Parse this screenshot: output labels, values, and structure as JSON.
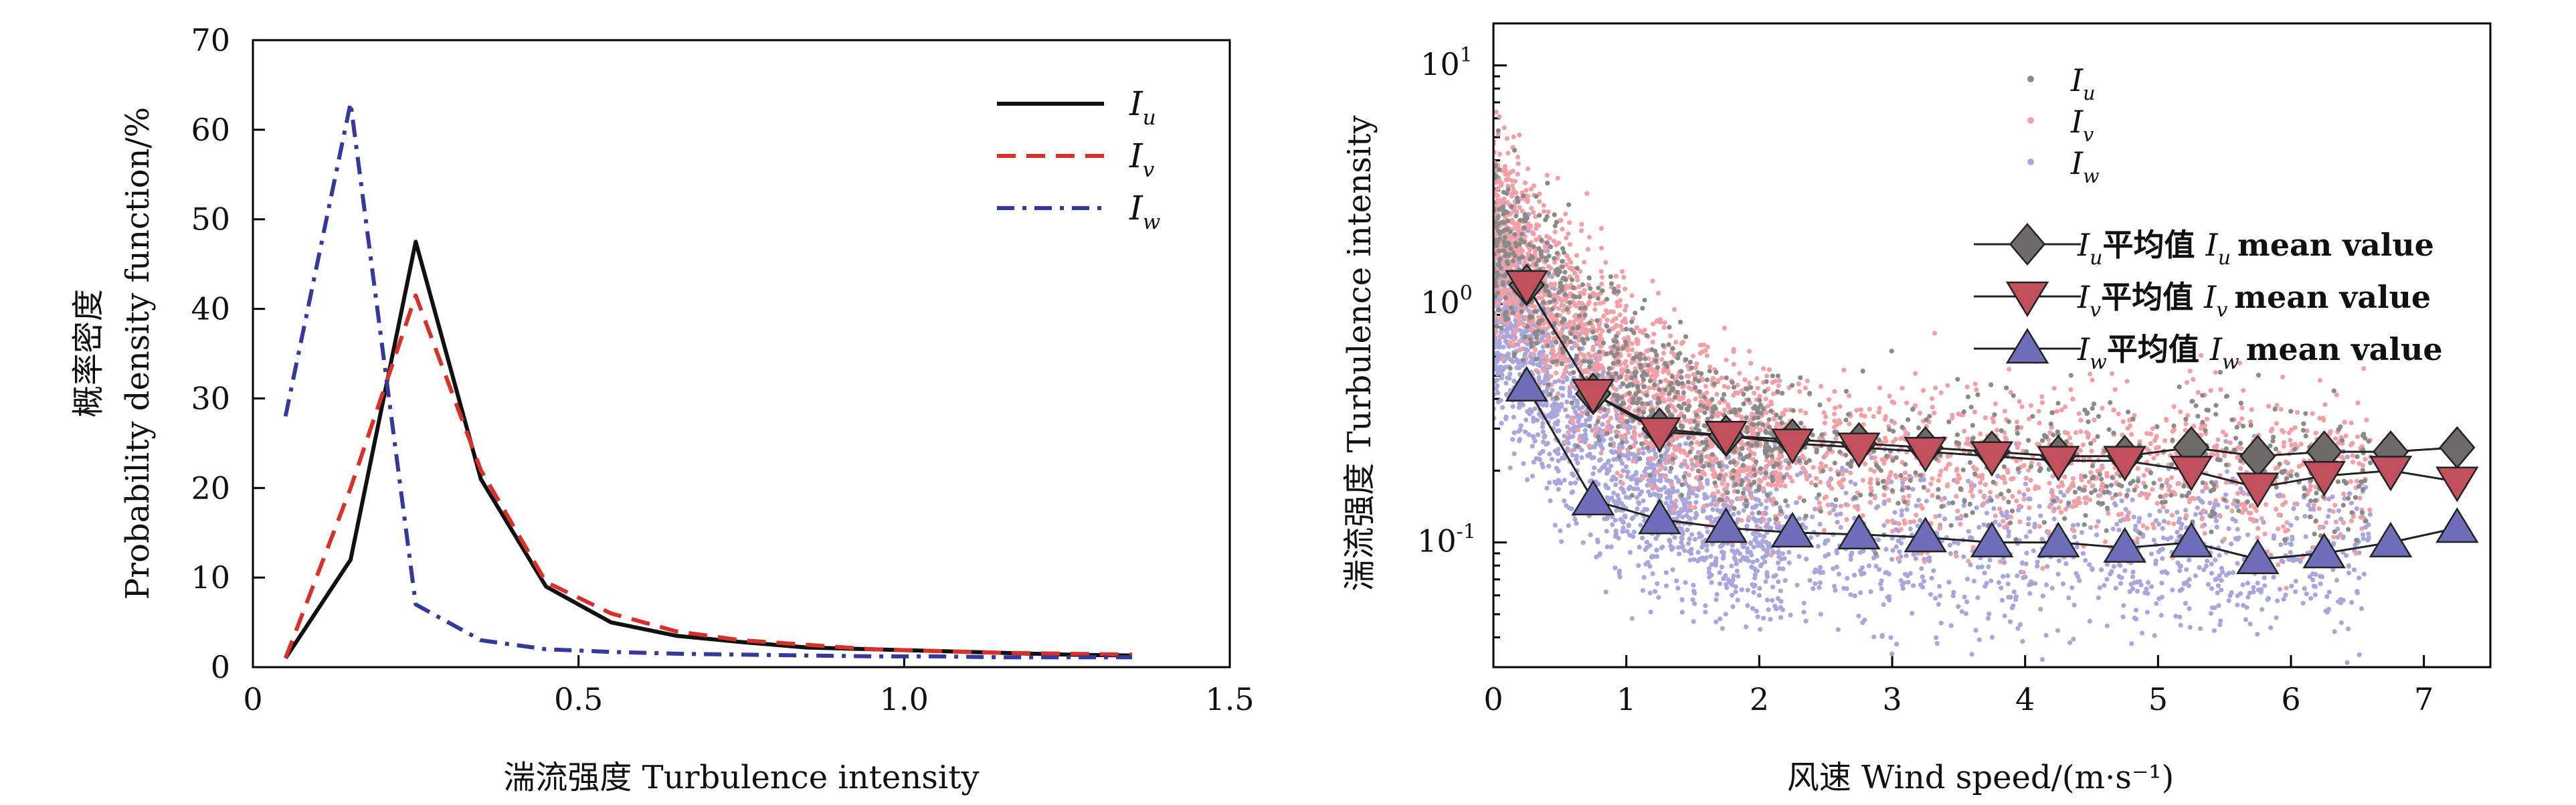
{
  "chart_data": [
    {
      "type": "line",
      "xlabel": "湍流强度 Turbulence intensity",
      "ylabel_cn": "概率密度",
      "ylabel_en": "Probability density function/%",
      "xlim": [
        0,
        1.5
      ],
      "ylim": [
        0,
        70
      ],
      "x_ticks": [
        "0",
        "0.5",
        "1.0",
        "1.5"
      ],
      "y_ticks": [
        "0",
        "10",
        "20",
        "30",
        "40",
        "50",
        "60",
        "70"
      ],
      "legend_position": "top-right",
      "x": [
        0.05,
        0.15,
        0.25,
        0.35,
        0.45,
        0.55,
        0.65,
        0.75,
        0.85,
        0.95,
        1.05,
        1.15,
        1.25,
        1.35
      ],
      "series": [
        {
          "name": "I",
          "sub": "u",
          "color": "#111111",
          "style": "solid",
          "values": [
            1.0,
            12.0,
            47.5,
            21.0,
            9.0,
            5.0,
            3.5,
            2.8,
            2.2,
            2.0,
            1.8,
            1.6,
            1.4,
            1.3
          ]
        },
        {
          "name": "I",
          "sub": "v",
          "color": "#d6322a",
          "style": "dash",
          "values": [
            1.0,
            20.0,
            41.5,
            22.0,
            9.5,
            6.0,
            4.0,
            3.0,
            2.5,
            2.0,
            1.8,
            1.6,
            1.5,
            1.4
          ]
        },
        {
          "name": "I",
          "sub": "w",
          "color": "#35399a",
          "style": "dashdot",
          "values": [
            28.0,
            63.0,
            7.0,
            3.0,
            2.0,
            1.7,
            1.5,
            1.4,
            1.3,
            1.2,
            1.2,
            1.1,
            1.1,
            1.1
          ]
        }
      ]
    },
    {
      "type": "scatter",
      "xlabel": "风速 Wind speed/(m·s⁻¹)",
      "ylabel": "湍流强度 Turbulence intensity",
      "xlim": [
        0,
        7.5
      ],
      "ylim": [
        0.03,
        15
      ],
      "y_scale": "log",
      "x_ticks": [
        "0",
        "1",
        "2",
        "3",
        "4",
        "5",
        "6",
        "7"
      ],
      "y_ticks": [
        {
          "base": "10",
          "exp": "1",
          "value": 10
        },
        {
          "base": "10",
          "exp": "0",
          "value": 1
        },
        {
          "base": "10",
          "exp": "-1",
          "value": 0.1
        }
      ],
      "legend_position": "top-right",
      "scatter_series": [
        {
          "name": "I",
          "sub": "u",
          "color": "#8a8a8a"
        },
        {
          "name": "I",
          "sub": "v",
          "color": "#f2a0a6"
        },
        {
          "name": "I",
          "sub": "w",
          "color": "#a9a6dc"
        }
      ],
      "mean_x": [
        0.25,
        0.75,
        1.25,
        1.75,
        2.25,
        2.75,
        3.25,
        3.75,
        4.25,
        4.75,
        5.25,
        5.75,
        6.25,
        6.75,
        7.25
      ],
      "mean_series": [
        {
          "name": "I",
          "sub": "u",
          "cn": "平均值",
          "en_sub": "u",
          "en": "mean value",
          "marker": "diamond",
          "color": "#6e6a68",
          "values": [
            1.2,
            0.42,
            0.3,
            0.28,
            0.27,
            0.26,
            0.25,
            0.24,
            0.23,
            0.23,
            0.25,
            0.23,
            0.24,
            0.24,
            0.25
          ]
        },
        {
          "name": "I",
          "sub": "v",
          "cn": "平均值",
          "en_sub": "v",
          "en": "mean value",
          "marker": "triangle-down",
          "color": "#c0505c",
          "values": [
            1.2,
            0.42,
            0.29,
            0.28,
            0.26,
            0.25,
            0.24,
            0.23,
            0.22,
            0.22,
            0.2,
            0.17,
            0.19,
            0.2,
            0.18
          ]
        },
        {
          "name": "I",
          "sub": "w",
          "cn": "平均值",
          "en_sub": "w",
          "en": "mean value",
          "marker": "triangle-up",
          "color": "#6d6db8",
          "values": [
            0.45,
            0.15,
            0.125,
            0.115,
            0.11,
            0.108,
            0.105,
            0.1,
            0.1,
            0.095,
            0.1,
            0.085,
            0.09,
            0.1,
            0.115
          ]
        }
      ]
    }
  ]
}
